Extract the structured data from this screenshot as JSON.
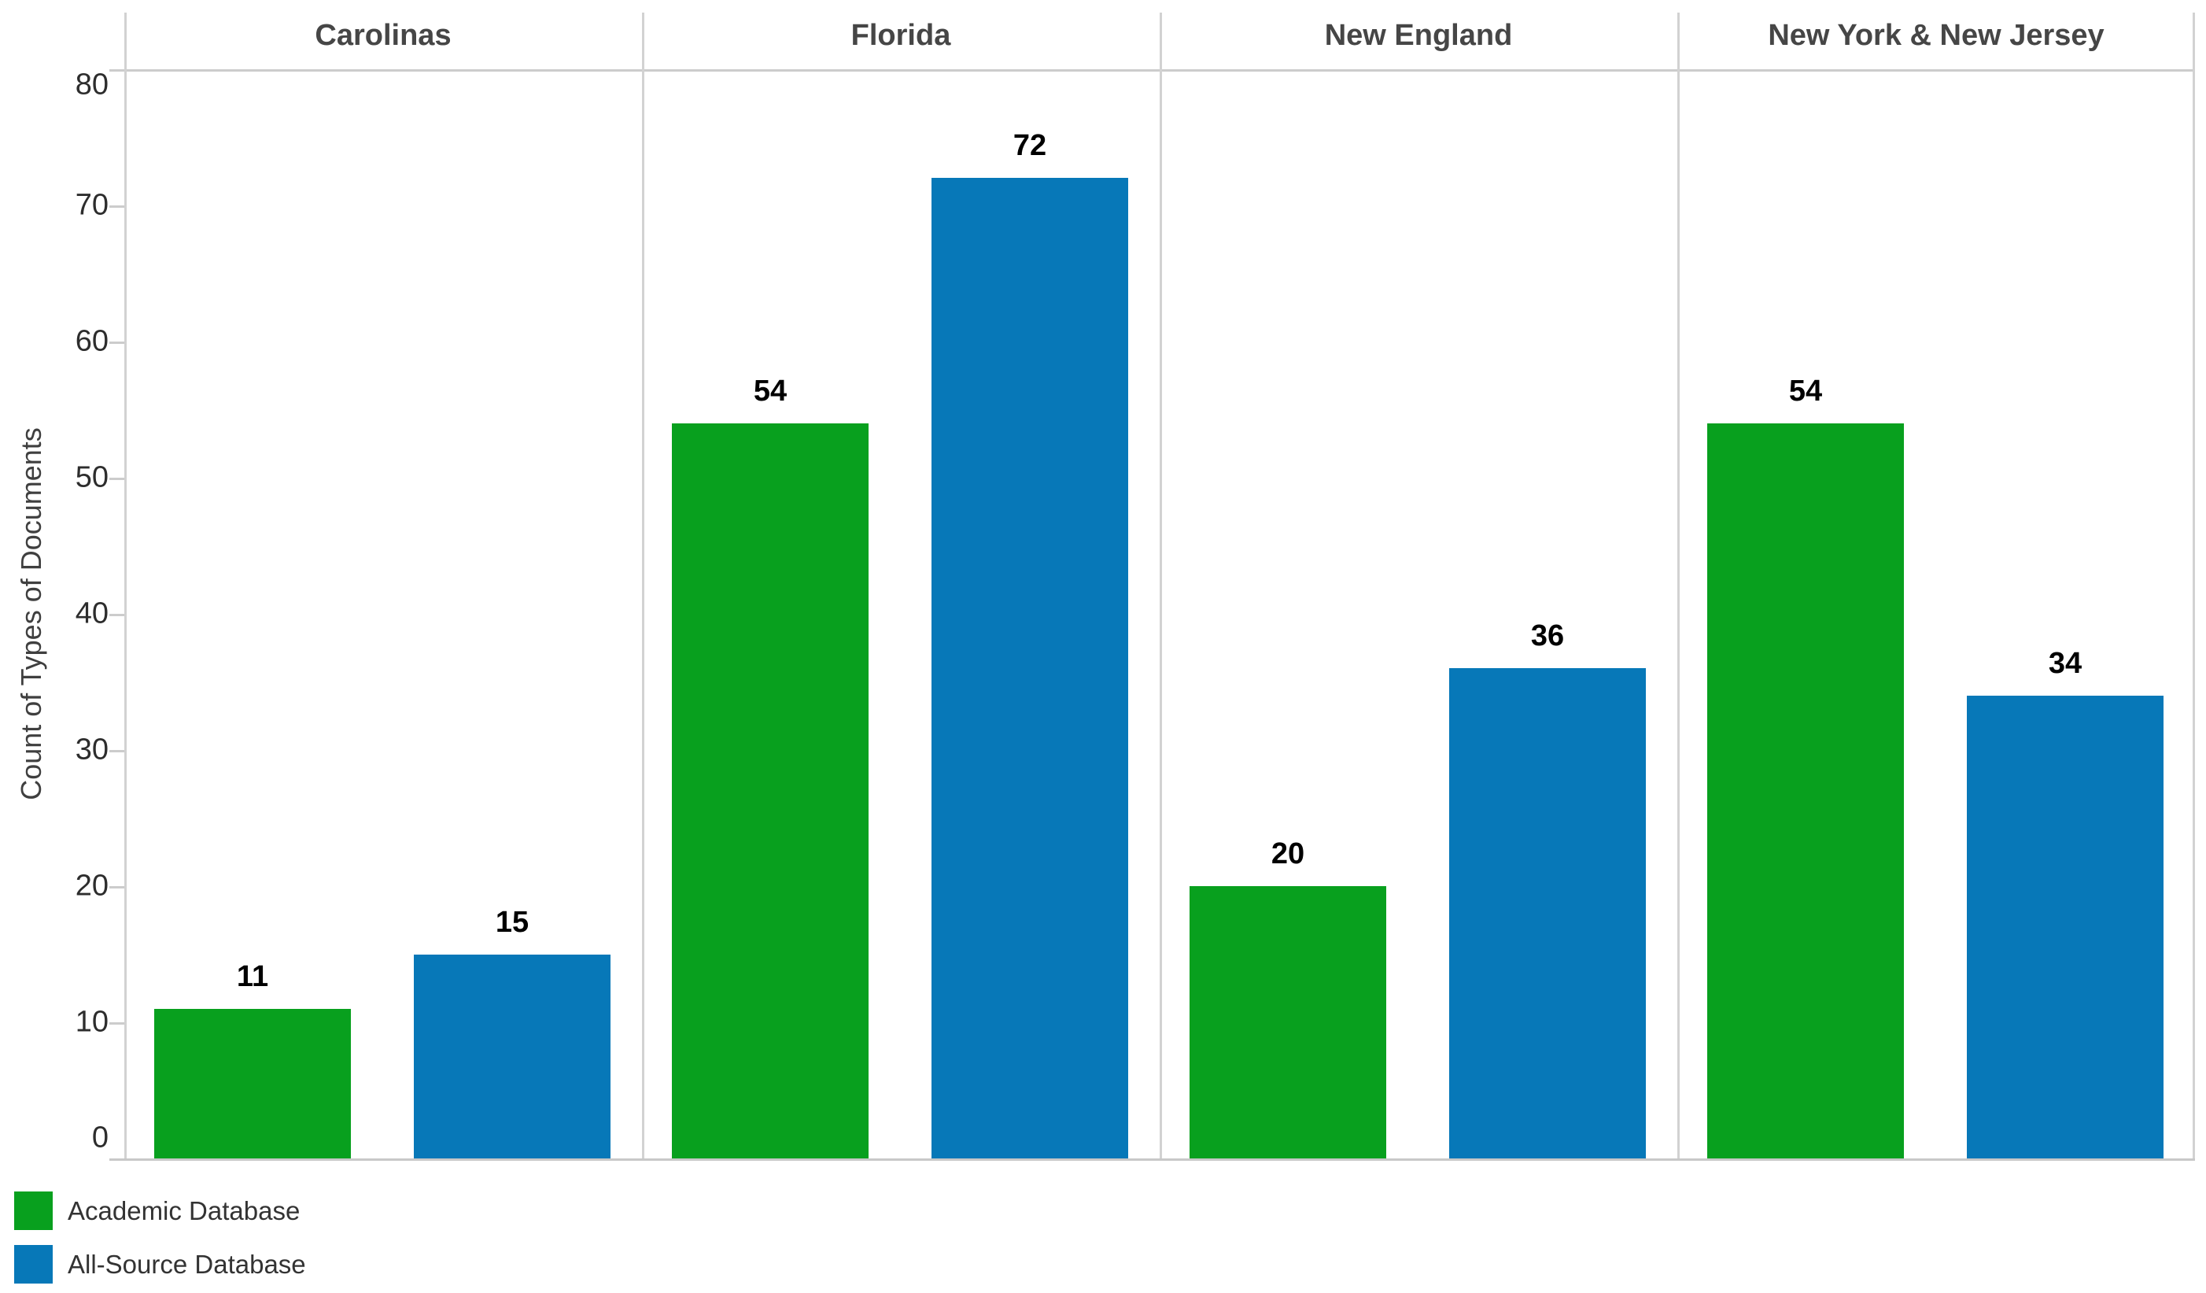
{
  "chart_data": {
    "type": "bar",
    "title": "",
    "categories": [
      "Carolinas",
      "Florida",
      "New England",
      "New York & New Jersey"
    ],
    "series": [
      {
        "name": "Academic Database",
        "color": "#08a01e",
        "values": [
          11,
          54,
          20,
          54
        ]
      },
      {
        "name": "All-Source Database",
        "color": "#0778b8",
        "values": [
          15,
          72,
          36,
          34
        ]
      }
    ],
    "ylabel": "Count of Types of Documents",
    "xlabel": "",
    "ylim": [
      0,
      80
    ],
    "yticks": [
      0,
      10,
      20,
      30,
      40,
      50,
      60,
      70,
      80
    ],
    "grid": "off",
    "bar_value_labels_shown": true,
    "legend_position": "bottom-left",
    "panel_line_color": "#cccccc",
    "header_text_color": "#464646",
    "tick_text_color": "#2d2d2d",
    "value_label_color": "#000000"
  }
}
